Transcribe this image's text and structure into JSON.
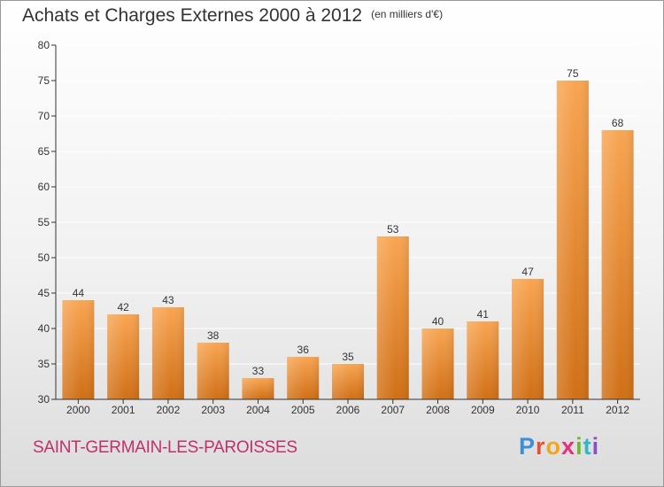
{
  "header": {
    "title": "Achats et Charges Externes 2000 à 2012",
    "unit": "(en milliers d'€)"
  },
  "footer": {
    "commune": "SAINT-GERMAIN-LES-PAROISSES",
    "logo": "Proxiti"
  },
  "colors": {
    "bar_top": "#f8a552",
    "bar_bottom": "#d06f16",
    "axis": "#333333",
    "grid": "#ffffff"
  },
  "chart_data": {
    "type": "bar",
    "categories": [
      "2000",
      "2001",
      "2002",
      "2003",
      "2004",
      "2005",
      "2006",
      "2007",
      "2008",
      "2009",
      "2010",
      "2011",
      "2012"
    ],
    "values": [
      44,
      42,
      43,
      38,
      33,
      36,
      35,
      53,
      40,
      41,
      47,
      75,
      68
    ],
    "title": "Achats et Charges Externes 2000 à 2012",
    "subtitle": "(en milliers d'€)",
    "xlabel": "",
    "ylabel": "",
    "ylim": [
      30,
      80
    ],
    "yticks": [
      30,
      35,
      40,
      45,
      50,
      55,
      60,
      65,
      70,
      75,
      80
    ],
    "grid": true,
    "data_labels": true
  }
}
